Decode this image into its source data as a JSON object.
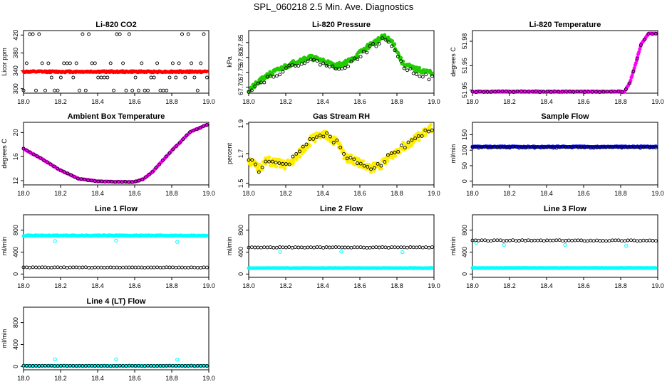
{
  "page_title": "SPL_060218  2.5 Min. Ave. Diagnostics",
  "chart_data": [
    {
      "type": "scatter",
      "title": "Li-820 CO2",
      "ylabel": "Licor ppm",
      "xlim": [
        18.0,
        19.0
      ],
      "ylim": [
        290,
        430
      ],
      "xticks": [
        "18.0",
        "18.2",
        "18.4",
        "18.6",
        "18.8",
        "19.0"
      ],
      "yticks": [
        "300",
        "340",
        "380",
        "420"
      ],
      "series": [
        {
          "name": "black",
          "color": "#000000",
          "marker": "open",
          "kind": "levels",
          "levels": [
            422,
            357,
            325,
            296
          ],
          "n": 60,
          "seed": 11
        },
        {
          "name": "red",
          "color": "#ff0000",
          "marker": "filled",
          "kind": "flat",
          "mean": 338,
          "noise": 1.5,
          "n": 250,
          "seed": 12
        }
      ]
    },
    {
      "type": "scatter",
      "title": "Li-820 Pressure",
      "ylabel": "kPa",
      "xlim": [
        18.0,
        19.0
      ],
      "ylim": [
        67.67,
        87.89
      ],
      "xticks": [
        "18.0",
        "18.2",
        "18.4",
        "18.6",
        "18.8",
        "19.0"
      ],
      "yticks": [
        "67.70",
        "67.75",
        "67.80",
        "67.85"
      ],
      "ytick_vals": [
        67.7,
        67.75,
        67.8,
        67.85
      ],
      "yrange": [
        67.68,
        67.89
      ],
      "series": [
        {
          "name": "green",
          "color": "#22cc00",
          "marker": "filled",
          "kind": "curve",
          "kx": [
            18.0,
            18.1,
            18.2,
            18.27,
            18.33,
            18.4,
            18.47,
            18.55,
            18.65,
            18.73,
            18.78,
            18.83,
            18.9,
            18.98
          ],
          "ky": [
            67.69,
            67.74,
            67.77,
            67.79,
            67.8,
            67.79,
            67.77,
            67.79,
            67.84,
            67.87,
            67.85,
            67.78,
            67.76,
            67.75
          ],
          "noise": 0.008,
          "n": 260,
          "seed": 21
        },
        {
          "name": "black",
          "color": "#000000",
          "marker": "open",
          "kind": "curve",
          "kx": [
            18.0,
            18.1,
            18.2,
            18.27,
            18.33,
            18.4,
            18.47,
            18.55,
            18.65,
            18.73,
            18.78,
            18.83,
            18.9,
            18.98
          ],
          "ky": [
            67.69,
            67.73,
            67.76,
            67.78,
            67.79,
            67.78,
            67.76,
            67.78,
            67.83,
            67.86,
            67.84,
            67.77,
            67.75,
            67.73
          ],
          "noise": 0.008,
          "n": 60,
          "seed": 22
        }
      ]
    },
    {
      "type": "scatter",
      "title": "Li-820 Temperature",
      "ylabel": "degrees C",
      "xlim": [
        18.0,
        19.0
      ],
      "xticks": [
        "18.0",
        "18.2",
        "18.4",
        "18.6",
        "18.8",
        "19.0"
      ],
      "yticks": [
        "51.95",
        "51.95",
        "51.98"
      ],
      "ytick_vals": [
        51.946,
        51.962,
        51.978
      ],
      "yrange": [
        51.944,
        51.985
      ],
      "series": [
        {
          "name": "magenta",
          "color": "#ff00ff",
          "marker": "filled",
          "kind": "curve",
          "kx": [
            18.0,
            18.82,
            18.85,
            18.88,
            18.91,
            18.95,
            19.0
          ],
          "ky": [
            51.945,
            51.945,
            51.951,
            51.963,
            51.976,
            51.983,
            51.983
          ],
          "noise": 0.0003,
          "n": 240,
          "seed": 31
        },
        {
          "name": "black",
          "color": "#000000",
          "marker": "open",
          "kind": "curve",
          "kx": [
            18.0,
            18.82,
            18.85,
            18.88,
            18.91,
            18.95,
            19.0
          ],
          "ky": [
            51.945,
            51.945,
            51.951,
            51.963,
            51.976,
            51.983,
            51.983
          ],
          "noise": 0.0003,
          "n": 50,
          "seed": 32
        }
      ]
    },
    {
      "type": "scatter",
      "title": "Ambient Box Temperature",
      "ylabel": "degrees C",
      "xlim": [
        18.0,
        19.0
      ],
      "ylim": [
        11.3,
        21.7
      ],
      "xticks": [
        "18.0",
        "18.2",
        "18.4",
        "18.6",
        "18.8",
        "19.0"
      ],
      "yticks": [
        "12",
        "16",
        "20"
      ],
      "series": [
        {
          "name": "magenta",
          "color": "#ff00ff",
          "marker": "filled",
          "kind": "curve",
          "kx": [
            18.0,
            18.1,
            18.2,
            18.3,
            18.4,
            18.5,
            18.6,
            18.65,
            18.7,
            18.8,
            18.9,
            19.0
          ],
          "ky": [
            17.3,
            15.6,
            13.7,
            12.3,
            11.9,
            11.8,
            11.8,
            12.3,
            13.6,
            17.0,
            20.1,
            21.4
          ],
          "noise": 0.05,
          "n": 220,
          "seed": 41
        },
        {
          "name": "black",
          "color": "#000000",
          "marker": "open",
          "kind": "curve",
          "kx": [
            18.0,
            18.1,
            18.2,
            18.3,
            18.4,
            18.5,
            18.6,
            18.65,
            18.7,
            18.8,
            18.9,
            19.0
          ],
          "ky": [
            17.3,
            15.6,
            13.7,
            12.3,
            11.9,
            11.8,
            11.8,
            12.3,
            13.6,
            17.0,
            20.1,
            21.4
          ],
          "noise": 0.05,
          "n": 55,
          "seed": 42
        }
      ]
    },
    {
      "type": "scatter",
      "title": "Gas Stream RH",
      "ylabel": "percent",
      "xlim": [
        18.0,
        19.0
      ],
      "ylim": [
        1.49,
        1.91
      ],
      "xticks": [
        "18.0",
        "18.2",
        "18.4",
        "18.6",
        "18.8",
        "19.0"
      ],
      "yticks": [
        "1.5",
        "1.7",
        "1.9"
      ],
      "ytick_vals": [
        1.5,
        1.7,
        1.9
      ],
      "series": [
        {
          "name": "yellow",
          "color": "#ffee00",
          "marker": "filled",
          "kind": "curve",
          "kx": [
            18.0,
            18.05,
            18.1,
            18.2,
            18.25,
            18.3,
            18.35,
            18.42,
            18.48,
            18.52,
            18.58,
            18.65,
            18.72,
            18.8,
            18.9,
            19.0
          ],
          "ky": [
            1.66,
            1.6,
            1.65,
            1.62,
            1.66,
            1.74,
            1.81,
            1.82,
            1.77,
            1.68,
            1.65,
            1.6,
            1.63,
            1.72,
            1.8,
            1.88
          ],
          "noise": 0.03,
          "n": 280,
          "seed": 51
        },
        {
          "name": "black",
          "color": "#000000",
          "marker": "open",
          "kind": "curve",
          "kx": [
            18.0,
            18.05,
            18.1,
            18.2,
            18.25,
            18.3,
            18.35,
            18.42,
            18.48,
            18.52,
            18.58,
            18.65,
            18.72,
            18.8,
            18.9,
            19.0
          ],
          "ky": [
            1.67,
            1.59,
            1.64,
            1.63,
            1.67,
            1.75,
            1.82,
            1.82,
            1.77,
            1.67,
            1.65,
            1.61,
            1.64,
            1.72,
            1.81,
            1.87
          ],
          "noise": 0.02,
          "n": 55,
          "seed": 52
        }
      ]
    },
    {
      "type": "scatter",
      "title": "Sample Flow",
      "ylabel": "ml/min",
      "xlim": [
        18.0,
        19.0
      ],
      "ylim": [
        -12,
        190
      ],
      "xticks": [
        "18.0",
        "18.2",
        "18.4",
        "18.6",
        "18.8",
        "19.0"
      ],
      "yticks": [
        "0",
        "50",
        "100",
        "150"
      ],
      "series": [
        {
          "name": "blue",
          "color": "#0000ff",
          "marker": "filled",
          "kind": "flat",
          "mean": 111,
          "noise": 1.5,
          "n": 240,
          "seed": 61
        },
        {
          "name": "black",
          "color": "#000000",
          "marker": "open",
          "kind": "flat",
          "mean": 109,
          "noise": 2,
          "n": 60,
          "seed": 62
        }
      ]
    },
    {
      "type": "scatter",
      "title": "Line 1 Flow",
      "ylabel": "ml/min",
      "xlim": [
        18.0,
        19.0
      ],
      "ylim": [
        -60,
        1080
      ],
      "xticks": [
        "18.0",
        "18.2",
        "18.4",
        "18.6",
        "18.8",
        "19.0"
      ],
      "yticks": [
        "0",
        "400",
        "800"
      ],
      "series": [
        {
          "name": "cyan",
          "color": "#00ffff",
          "marker": "filled",
          "kind": "flat",
          "mean": 700,
          "noise": 8,
          "n": 240,
          "seed": 71,
          "outliers": [
            [
              18.17,
              600
            ],
            [
              18.5,
              610
            ],
            [
              18.83,
              585
            ]
          ]
        },
        {
          "name": "black",
          "color": "#000000",
          "marker": "open",
          "kind": "flat",
          "mean": 120,
          "noise": 4,
          "n": 60,
          "seed": 72
        }
      ]
    },
    {
      "type": "scatter",
      "title": "Line 2 Flow",
      "ylabel": "ml/min",
      "xlim": [
        18.0,
        19.0
      ],
      "ylim": [
        -60,
        1080
      ],
      "xticks": [
        "18.0",
        "18.2",
        "18.4",
        "18.6",
        "18.8",
        "19.0"
      ],
      "yticks": [
        "0",
        "400",
        "800"
      ],
      "series": [
        {
          "name": "cyan",
          "color": "#00ffff",
          "marker": "filled",
          "kind": "flat",
          "mean": 108,
          "noise": 3,
          "n": 240,
          "seed": 81,
          "outliers": [
            [
              18.17,
              405
            ],
            [
              18.5,
              410
            ],
            [
              18.83,
              400
            ]
          ]
        },
        {
          "name": "black",
          "color": "#000000",
          "marker": "open",
          "kind": "flat",
          "mean": 485,
          "noise": 6,
          "n": 60,
          "seed": 82
        }
      ]
    },
    {
      "type": "scatter",
      "title": "Line 3 Flow",
      "ylabel": "ml/min",
      "xlim": [
        18.0,
        19.0
      ],
      "ylim": [
        -60,
        1080
      ],
      "xticks": [
        "18.0",
        "18.2",
        "18.4",
        "18.6",
        "18.8",
        "19.0"
      ],
      "yticks": [
        "0",
        "400",
        "800"
      ],
      "series": [
        {
          "name": "cyan",
          "color": "#00ffff",
          "marker": "filled",
          "kind": "flat",
          "mean": 110,
          "noise": 3,
          "n": 240,
          "seed": 91,
          "outliers": [
            [
              18.02,
              570
            ],
            [
              18.17,
              530
            ],
            [
              18.5,
              530
            ],
            [
              18.83,
              515
            ]
          ]
        },
        {
          "name": "black",
          "color": "#000000",
          "marker": "open",
          "kind": "flat",
          "mean": 610,
          "noise": 8,
          "n": 60,
          "seed": 92
        }
      ]
    },
    {
      "type": "scatter",
      "title": "Line 4 (LT) Flow",
      "ylabel": "ml/min",
      "xlim": [
        18.0,
        19.0
      ],
      "ylim": [
        -60,
        1080
      ],
      "xticks": [
        "18.0",
        "18.2",
        "18.4",
        "18.6",
        "18.8",
        "19.0"
      ],
      "yticks": [
        "0",
        "400",
        "800"
      ],
      "series": [
        {
          "name": "cyan",
          "color": "#00ffff",
          "marker": "filled",
          "kind": "flat",
          "mean": 10,
          "noise": 3,
          "n": 240,
          "seed": 101,
          "outliers": [
            [
              18.17,
              130
            ],
            [
              18.5,
              130
            ],
            [
              18.83,
              125
            ]
          ]
        },
        {
          "name": "black",
          "color": "#000000",
          "marker": "open",
          "kind": "flat",
          "mean": 12,
          "noise": 3,
          "n": 60,
          "seed": 102
        }
      ]
    }
  ]
}
